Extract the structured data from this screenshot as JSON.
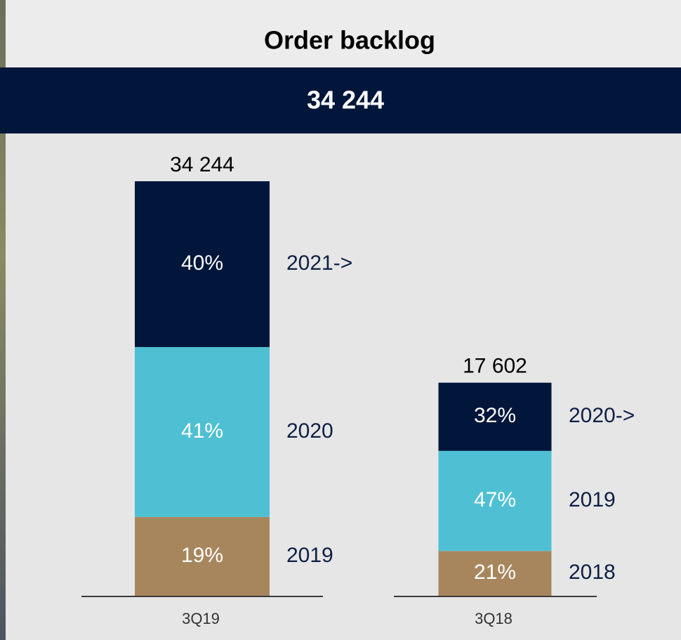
{
  "header": {
    "title": "Order backlog",
    "headline": "34 244"
  },
  "chart_data": {
    "type": "stacked-bar",
    "bars": [
      {
        "category": "3Q19",
        "total": 34244,
        "total_label": "34 244",
        "segments": [
          {
            "name": "2019",
            "value": 19,
            "value_label": "19%",
            "color": "#a8865d"
          },
          {
            "name": "2020",
            "value": 41,
            "value_label": "41%",
            "color": "#4fc0d3"
          },
          {
            "name": "2021->",
            "value": 40,
            "value_label": "40%",
            "color": "#00163a"
          }
        ]
      },
      {
        "category": "3Q18",
        "total": 17602,
        "total_label": "17 602",
        "segments": [
          {
            "name": "2018",
            "value": 21,
            "value_label": "21%",
            "color": "#a8865d"
          },
          {
            "name": "2019",
            "value": 47,
            "value_label": "47%",
            "color": "#4fc0d3"
          },
          {
            "name": "2020->",
            "value": 32,
            "value_label": "32%",
            "color": "#00163a"
          }
        ]
      }
    ]
  }
}
